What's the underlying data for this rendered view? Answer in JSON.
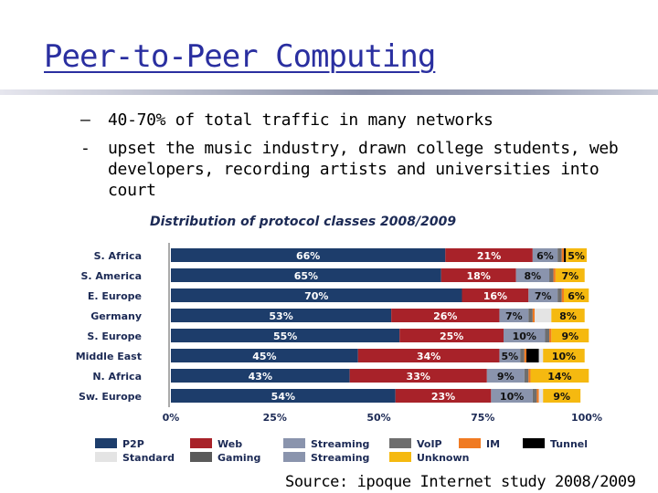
{
  "slide": {
    "title": "Peer-to-Peer Computing",
    "bullets": [
      {
        "marker": "–",
        "text": "40-70% of total traffic in many networks"
      },
      {
        "marker": "-",
        "text": "upset the music industry, drawn college students, web developers, recording artists and universities into court"
      }
    ],
    "source": "Source: ipoque Internet study 2008/2009"
  },
  "chart_data": {
    "type": "bar",
    "orientation": "horizontal",
    "stacked": true,
    "title": "Distribution of protocol classes 2008/2009",
    "categories": [
      "S. Africa",
      "S. America",
      "E. Europe",
      "Germany",
      "S. Europe",
      "Middle East",
      "N. Africa",
      "Sw. Europe"
    ],
    "xlim": [
      0,
      100
    ],
    "x_ticks": [
      "0%",
      "25%",
      "50%",
      "75%",
      "100%"
    ],
    "legend_placement": "bottom",
    "series": [
      {
        "name": "P2P",
        "color": "#1d3d6b",
        "values": [
          66,
          65,
          70,
          53,
          55,
          45,
          43,
          54
        ],
        "labels": [
          "66%",
          "65%",
          "70%",
          "53%",
          "55%",
          "45%",
          "43%",
          "54%"
        ]
      },
      {
        "name": "Web",
        "color": "#a82229",
        "values": [
          21,
          18,
          16,
          26,
          25,
          34,
          33,
          23
        ],
        "labels": [
          "21%",
          "18%",
          "16%",
          "26%",
          "25%",
          "34%",
          "33%",
          "23%"
        ]
      },
      {
        "name": "Streaming",
        "color": "#8a94ad",
        "values": [
          6,
          8,
          7,
          7,
          10,
          5,
          9,
          10
        ],
        "labels": [
          "6%",
          "8%",
          "7%",
          "7%",
          "10%",
          "5%",
          "9%",
          "10%"
        ]
      },
      {
        "name": "VoIP",
        "color": "#6e6e6e",
        "values": [
          1,
          1,
          1,
          1,
          1,
          1,
          1,
          1
        ],
        "labels": [
          "",
          "",
          "",
          "",
          "",
          "",
          "",
          ""
        ]
      },
      {
        "name": "IM",
        "color": "#f07a22",
        "values": [
          0.5,
          0.5,
          0.5,
          0.5,
          0.5,
          0.5,
          0.5,
          0.5
        ],
        "labels": [
          "",
          "",
          "",
          "",
          "",
          "",
          "",
          ""
        ]
      },
      {
        "name": "Tunnel",
        "color": "#000000",
        "values": [
          0.5,
          0,
          0,
          0,
          0,
          3,
          0,
          0
        ],
        "labels": [
          "",
          "",
          "",
          "",
          "",
          "",
          "",
          ""
        ]
      },
      {
        "name": "Standard",
        "color": "#e4e4e4",
        "values": [
          0,
          0,
          0,
          4,
          0,
          1,
          0,
          1
        ],
        "labels": [
          "",
          "",
          "",
          "",
          "",
          "",
          "",
          ""
        ]
      },
      {
        "name": "Gaming",
        "color": "#5a5a5a",
        "values": [
          0,
          0,
          0,
          0,
          0,
          0,
          0,
          0
        ],
        "labels": [
          "",
          "",
          "",
          "",
          "",
          "",
          "",
          ""
        ]
      },
      {
        "name": "Unknown",
        "color": "#f5b910",
        "values": [
          5,
          7,
          6,
          8,
          9,
          10,
          14,
          9
        ],
        "labels": [
          "5%",
          "7%",
          "6%",
          "8%",
          "9%",
          "10%",
          "14%",
          "9%"
        ]
      }
    ],
    "legend": [
      [
        {
          "name": "P2P",
          "color": "#1d3d6b"
        },
        {
          "name": "Web",
          "color": "#a82229"
        },
        {
          "name": "Streaming",
          "color": "#8a94ad"
        },
        {
          "name": "VoIP",
          "color": "#6e6e6e"
        },
        {
          "name": "IM",
          "color": "#f07a22"
        },
        {
          "name": "Tunnel",
          "color": "#000000"
        }
      ],
      [
        {
          "name": "Standard",
          "color": "#e4e4e4"
        },
        {
          "name": "Gaming",
          "color": "#5a5a5a"
        },
        {
          "name": "Streaming",
          "color": "#8a94ad"
        },
        {
          "name": "Unknown",
          "color": "#f5b910"
        }
      ]
    ]
  }
}
